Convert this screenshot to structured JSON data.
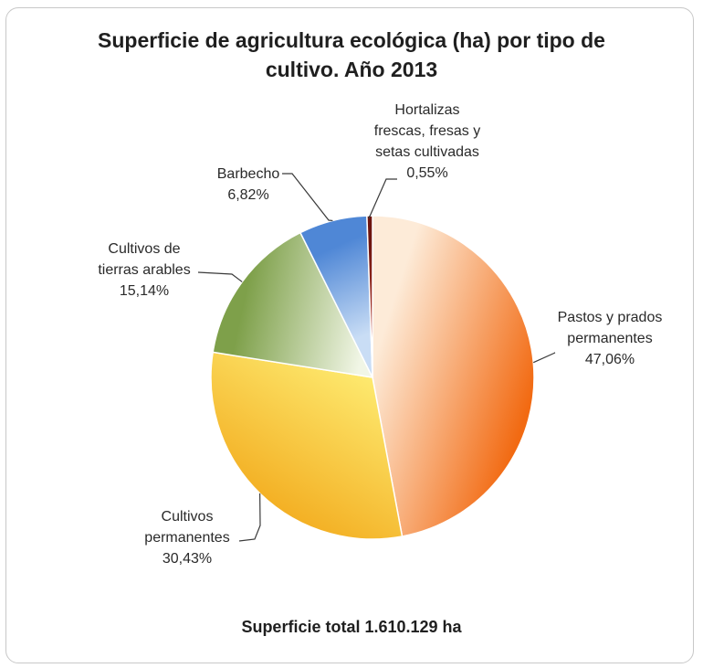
{
  "chart_data": {
    "type": "pie",
    "title_line1": "Superficie de agricultura ecológica (ha) por tipo de",
    "title_line2": "cultivo. Año 2013",
    "footer": "Superficie total 1.610.129 ha",
    "slices": [
      {
        "label_lines": [
          "Pastos y prados",
          "permanentes"
        ],
        "value_text": "47,06%",
        "value": 47.06,
        "color_light": "#fdebd8",
        "color_dark": "#f26a12"
      },
      {
        "label_lines": [
          "Cultivos",
          "permanentes"
        ],
        "value_text": "30,43%",
        "value": 30.43,
        "color_light": "#fff27a",
        "color_dark": "#f2a91b"
      },
      {
        "label_lines": [
          "Cultivos de",
          "tierras arables"
        ],
        "value_text": "15,14%",
        "value": 15.14,
        "color_light": "#f1f6e6",
        "color_dark": "#7ea04a"
      },
      {
        "label_lines": [
          "Barbecho"
        ],
        "value_text": "6,82%",
        "value": 6.82,
        "color_light": "#c9ddf5",
        "color_dark": "#4f87d6"
      },
      {
        "label_lines": [
          "Hortalizas",
          "frescas, fresas y",
          "setas cultivadas"
        ],
        "value_text": "0,55%",
        "value": 0.55,
        "color_light": "#b33a2e",
        "color_dark": "#6e150f"
      }
    ]
  }
}
